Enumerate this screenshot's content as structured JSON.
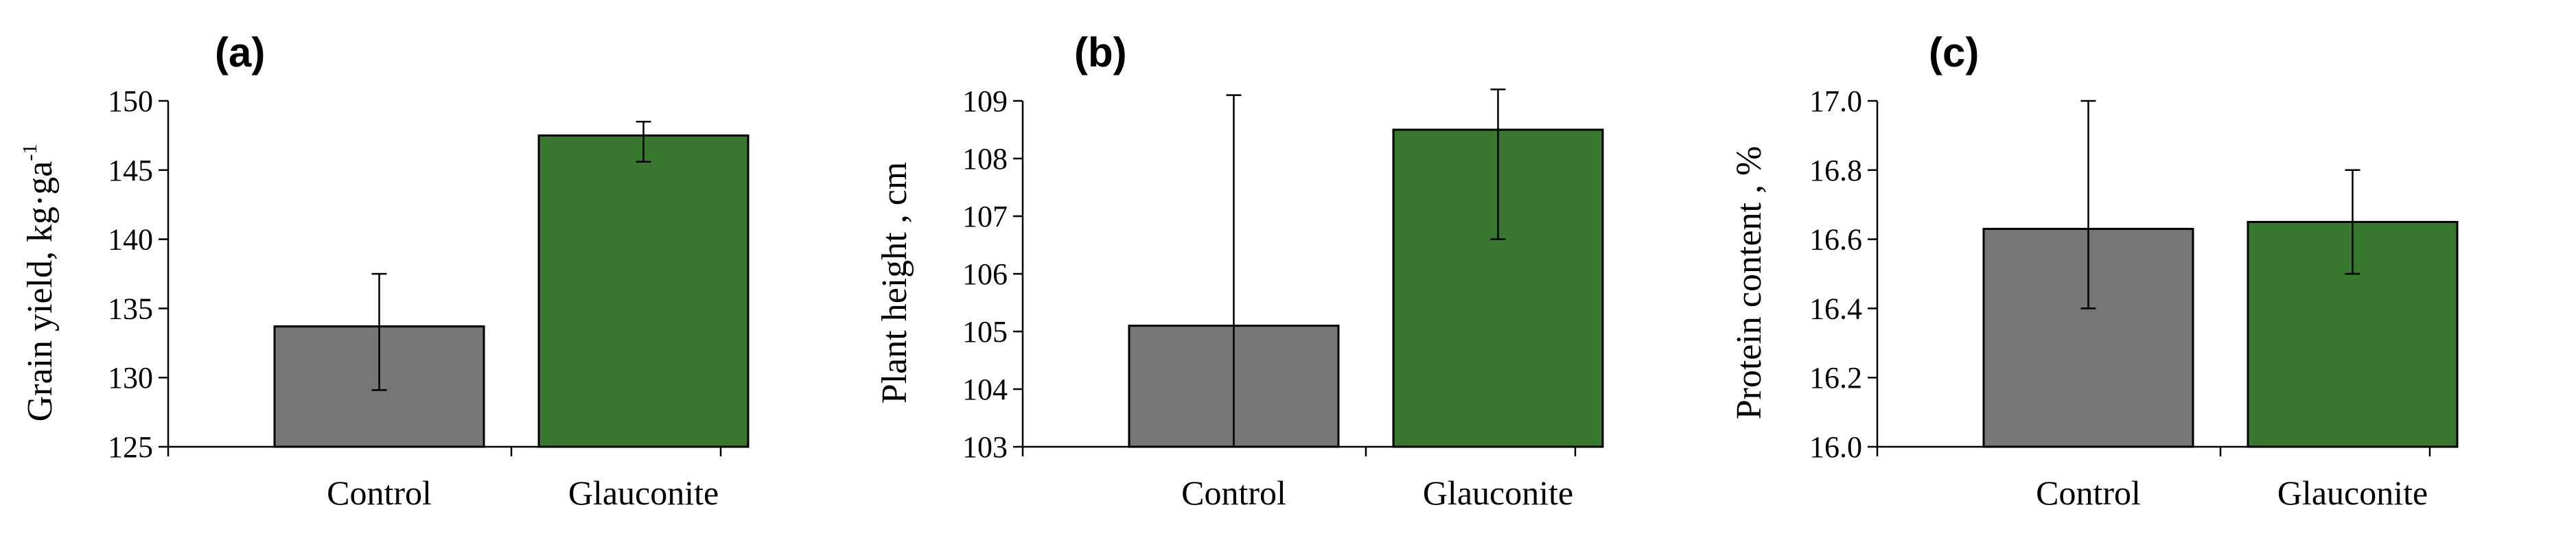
{
  "chart_data": [
    {
      "type": "bar",
      "panel_label": "(a)",
      "categories": [
        "Control",
        "Glauconite"
      ],
      "values": [
        133.7,
        147.5
      ],
      "errors": [
        {
          "low": 129.1,
          "high": 137.5
        },
        {
          "low": 145.6,
          "high": 148.5
        }
      ],
      "colors": [
        "#767676",
        "#38782f"
      ],
      "ylabel": "Grain yield, kg·ga",
      "ylabel_superscript": "-1",
      "ylim": [
        125,
        150
      ],
      "yticks": [
        "125",
        "130",
        "135",
        "140",
        "145",
        "150"
      ]
    },
    {
      "type": "bar",
      "panel_label": "(b)",
      "categories": [
        "Control",
        "Glauconite"
      ],
      "values": [
        105.1,
        108.5
      ],
      "errors": [
        {
          "low": 103.0,
          "high": 109.1
        },
        {
          "low": 106.6,
          "high": 109.2
        }
      ],
      "colors": [
        "#767676",
        "#38782f"
      ],
      "ylabel": "Plant height , cm",
      "ylabel_superscript": "",
      "ylim": [
        103,
        109
      ],
      "yticks": [
        "103",
        "104",
        "105",
        "106",
        "107",
        "108",
        "109"
      ]
    },
    {
      "type": "bar",
      "panel_label": "(c)",
      "categories": [
        "Control",
        "Glauconite"
      ],
      "values": [
        16.63,
        16.65
      ],
      "errors": [
        {
          "low": 16.4,
          "high": 17.0
        },
        {
          "low": 16.5,
          "high": 16.8
        }
      ],
      "colors": [
        "#767676",
        "#38782f"
      ],
      "ylabel": "Protein content , %",
      "ylabel_superscript": "",
      "ylim": [
        16.0,
        17.0
      ],
      "yticks": [
        "16.0",
        "16.2",
        "16.4",
        "16.6",
        "16.8",
        "17.0"
      ]
    }
  ]
}
